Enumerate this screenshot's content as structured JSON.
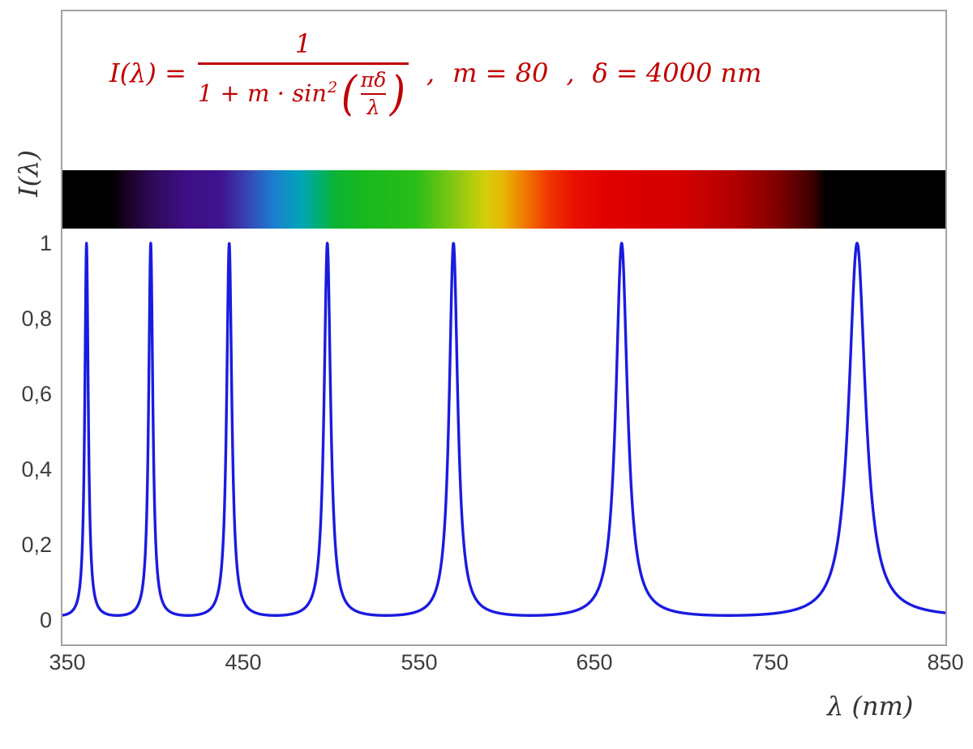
{
  "figure": {
    "xlabel": "λ  (nm)",
    "ylabel": "I(λ)"
  },
  "formula": {
    "color": "#c00000",
    "lhs": "I(λ) =",
    "numerator": "1",
    "den_prefix": "1 + m · sin",
    "den_sup": "2",
    "lparen": "(",
    "rparen": ")",
    "inner_num": "πδ",
    "inner_den": "λ",
    "comma1": ",",
    "m_eq": "m = 80",
    "comma2": ",",
    "delta_eq": "δ = 4000 nm"
  },
  "chart_data": {
    "type": "line",
    "annotation": "I(λ) = 1 / (1 + m·sin²(πδ/λ)) ,  m = 80 ,  δ = 4000 nm",
    "parameters": {
      "m": 80,
      "delta_nm": 4000
    },
    "x": {
      "label": "λ  (nm)",
      "min": 350,
      "max": 850,
      "ticks": [
        "350",
        "450",
        "550",
        "650",
        "750",
        "850"
      ]
    },
    "y": {
      "label": "I(λ)",
      "min": 0,
      "max": 1,
      "ticks": [
        "0",
        "0,2",
        "0,4",
        "0,6",
        "0,8",
        "1"
      ]
    },
    "grid": false,
    "legend": false,
    "curve_color": "#1b1be0",
    "peaks_nm": [
      363.6,
      400.0,
      444.4,
      500.0,
      571.4,
      666.7,
      800.0
    ],
    "peak_intensity": 1.0,
    "baseline_intensity": 0.0123,
    "spectrum_bar": {
      "visible_range_nm": [
        380,
        780
      ],
      "gradient": [
        {
          "pos": 0.0,
          "color": "#000000"
        },
        {
          "pos": 5.6,
          "color": "#000000"
        },
        {
          "pos": 7.0,
          "color": "#15001c"
        },
        {
          "pos": 10.0,
          "color": "#2e0a55"
        },
        {
          "pos": 14.0,
          "color": "#3d0f86"
        },
        {
          "pos": 18.0,
          "color": "#3e138f"
        },
        {
          "pos": 21.0,
          "color": "#3746b4"
        },
        {
          "pos": 24.0,
          "color": "#1b7fd0"
        },
        {
          "pos": 27.0,
          "color": "#00a5b8"
        },
        {
          "pos": 29.0,
          "color": "#00ae74"
        },
        {
          "pos": 31.0,
          "color": "#0cb432"
        },
        {
          "pos": 34.0,
          "color": "#17b81c"
        },
        {
          "pos": 40.0,
          "color": "#2abd18"
        },
        {
          "pos": 43.0,
          "color": "#66c414"
        },
        {
          "pos": 46.0,
          "color": "#a8cc0e"
        },
        {
          "pos": 48.0,
          "color": "#d4ce08"
        },
        {
          "pos": 50.0,
          "color": "#e8b404"
        },
        {
          "pos": 52.4,
          "color": "#f07800"
        },
        {
          "pos": 55.0,
          "color": "#f03800"
        },
        {
          "pos": 58.0,
          "color": "#e81000"
        },
        {
          "pos": 62.0,
          "color": "#e00000"
        },
        {
          "pos": 70.0,
          "color": "#d40000"
        },
        {
          "pos": 76.0,
          "color": "#b20000"
        },
        {
          "pos": 81.0,
          "color": "#800000"
        },
        {
          "pos": 85.0,
          "color": "#3c0000"
        },
        {
          "pos": 86.5,
          "color": "#000000"
        },
        {
          "pos": 100.0,
          "color": "#000000"
        }
      ]
    }
  }
}
